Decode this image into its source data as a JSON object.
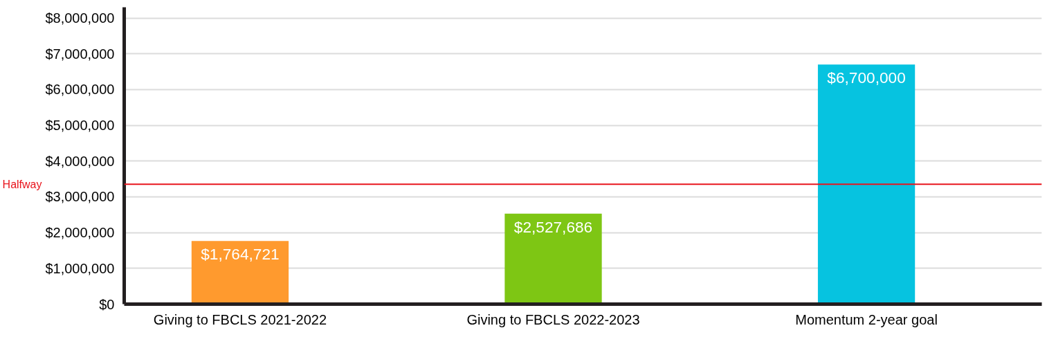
{
  "chart_data": {
    "type": "bar",
    "categories": [
      "Giving to FBCLS 2021-2022",
      "Giving to FBCLS 2022-2023",
      "Momentum 2-year goal"
    ],
    "values": [
      1764721,
      2527686,
      6700000
    ],
    "colors": [
      "#ff9a2e",
      "#7ec614",
      "#06c3e0"
    ],
    "value_labels": [
      "$1,764,721",
      "$2,527,686",
      "$6,700,000"
    ],
    "ylim": [
      0,
      8300000
    ],
    "yticks": [
      {
        "value": 0,
        "label": "$0"
      },
      {
        "value": 1000000,
        "label": "$1,000,000"
      },
      {
        "value": 2000000,
        "label": "$2,000,000"
      },
      {
        "value": 3000000,
        "label": "$3,000,000"
      },
      {
        "value": 4000000,
        "label": "$4,000,000"
      },
      {
        "value": 5000000,
        "label": "$5,000,000"
      },
      {
        "value": 6000000,
        "label": "$6,000,000"
      },
      {
        "value": 7000000,
        "label": "$7,000,000"
      },
      {
        "value": 8000000,
        "label": "$8,000,000"
      }
    ],
    "grid": "y",
    "ref_lines": [
      {
        "axis": "y",
        "value": 3350000,
        "label": "Halfway",
        "color": "#e8141c"
      }
    ]
  }
}
